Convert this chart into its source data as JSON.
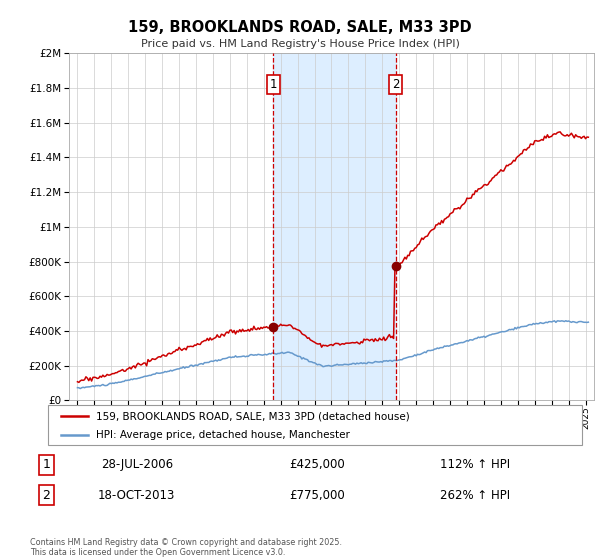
{
  "title": "159, BROOKLANDS ROAD, SALE, M33 3PD",
  "subtitle": "Price paid vs. HM Land Registry's House Price Index (HPI)",
  "background_color": "#ffffff",
  "plot_bg_color": "#ffffff",
  "grid_color": "#cccccc",
  "legend_label_red": "159, BROOKLANDS ROAD, SALE, M33 3PD (detached house)",
  "legend_label_blue": "HPI: Average price, detached house, Manchester",
  "footnote": "Contains HM Land Registry data © Crown copyright and database right 2025.\nThis data is licensed under the Open Government Licence v3.0.",
  "transaction1_date": "28-JUL-2006",
  "transaction1_price": "£425,000",
  "transaction1_hpi": "112% ↑ HPI",
  "transaction2_date": "18-OCT-2013",
  "transaction2_price": "£775,000",
  "transaction2_hpi": "262% ↑ HPI",
  "vline1_x": 2006.57,
  "vline2_x": 2013.79,
  "shade_color": "#ddeeff",
  "red_color": "#cc0000",
  "blue_color": "#6699cc",
  "dot_color": "#880000",
  "ylim_max": 2000000,
  "ylim_min": 0,
  "xlim_min": 1994.5,
  "xlim_max": 2025.5
}
